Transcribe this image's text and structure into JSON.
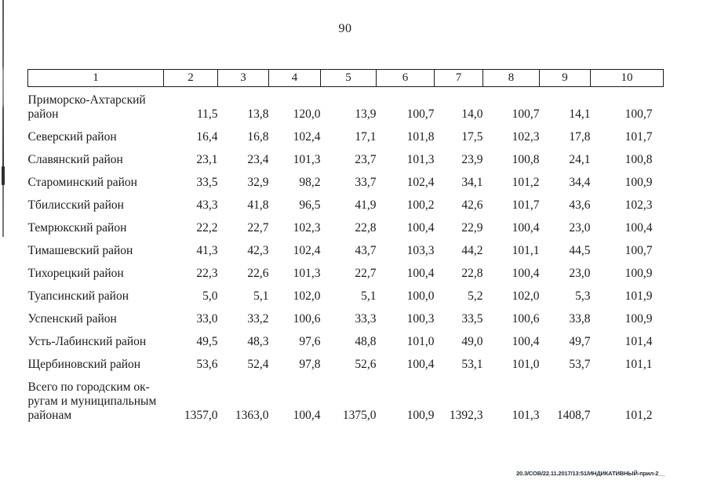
{
  "page": {
    "number": "90",
    "footer_stamp": "20.3/СОВ/22.11.2017/13:51/ИНДИКАТИВНЫЙ-прил-2__"
  },
  "table": {
    "header": [
      "1",
      "2",
      "3",
      "4",
      "5",
      "6",
      "7",
      "8",
      "9",
      "10"
    ],
    "rows": [
      {
        "name": "Приморско-Ахтарский\nрайон",
        "values": [
          "11,5",
          "13,8",
          "120,0",
          "13,9",
          "100,7",
          "14,0",
          "100,7",
          "14,1",
          "100,7"
        ]
      },
      {
        "name": "Северский район",
        "values": [
          "16,4",
          "16,8",
          "102,4",
          "17,1",
          "101,8",
          "17,5",
          "102,3",
          "17,8",
          "101,7"
        ]
      },
      {
        "name": "Славянский район",
        "values": [
          "23,1",
          "23,4",
          "101,3",
          "23,7",
          "101,3",
          "23,9",
          "100,8",
          "24,1",
          "100,8"
        ]
      },
      {
        "name": "Староминский район",
        "values": [
          "33,5",
          "32,9",
          "98,2",
          "33,7",
          "102,4",
          "34,1",
          "101,2",
          "34,4",
          "100,9"
        ]
      },
      {
        "name": "Тбилисский район",
        "values": [
          "43,3",
          "41,8",
          "96,5",
          "41,9",
          "100,2",
          "42,6",
          "101,7",
          "43,6",
          "102,3"
        ]
      },
      {
        "name": "Темрюкский район",
        "values": [
          "22,2",
          "22,7",
          "102,3",
          "22,8",
          "100,4",
          "22,9",
          "100,4",
          "23,0",
          "100,4"
        ]
      },
      {
        "name": "Тимашевский район",
        "values": [
          "41,3",
          "42,3",
          "102,4",
          "43,7",
          "103,3",
          "44,2",
          "101,1",
          "44,5",
          "100,7"
        ]
      },
      {
        "name": "Тихорецкий район",
        "values": [
          "22,3",
          "22,6",
          "101,3",
          "22,7",
          "100,4",
          "22,8",
          "100,4",
          "23,0",
          "100,9"
        ]
      },
      {
        "name": "Туапсинский район",
        "values": [
          "5,0",
          "5,1",
          "102,0",
          "5,1",
          "100,0",
          "5,2",
          "102,0",
          "5,3",
          "101,9"
        ]
      },
      {
        "name": "Успенский район",
        "values": [
          "33,0",
          "33,2",
          "100,6",
          "33,3",
          "100,3",
          "33,5",
          "100,6",
          "33,8",
          "100,9"
        ]
      },
      {
        "name": "Усть-Лабинский район",
        "values": [
          "49,5",
          "48,3",
          "97,6",
          "48,8",
          "101,0",
          "49,0",
          "100,4",
          "49,7",
          "101,4"
        ]
      },
      {
        "name": "Щербиновский район",
        "values": [
          "53,6",
          "52,4",
          "97,8",
          "52,6",
          "100,4",
          "53,1",
          "101,0",
          "53,7",
          "101,1"
        ]
      },
      {
        "name": "Всего по городским ок-\nругам и муниципальным\nрайонам",
        "values": [
          "1357,0",
          "1363,0",
          "100,4",
          "1375,0",
          "100,9",
          "1392,3",
          "101,3",
          "1408,7",
          "101,2"
        ]
      }
    ]
  }
}
